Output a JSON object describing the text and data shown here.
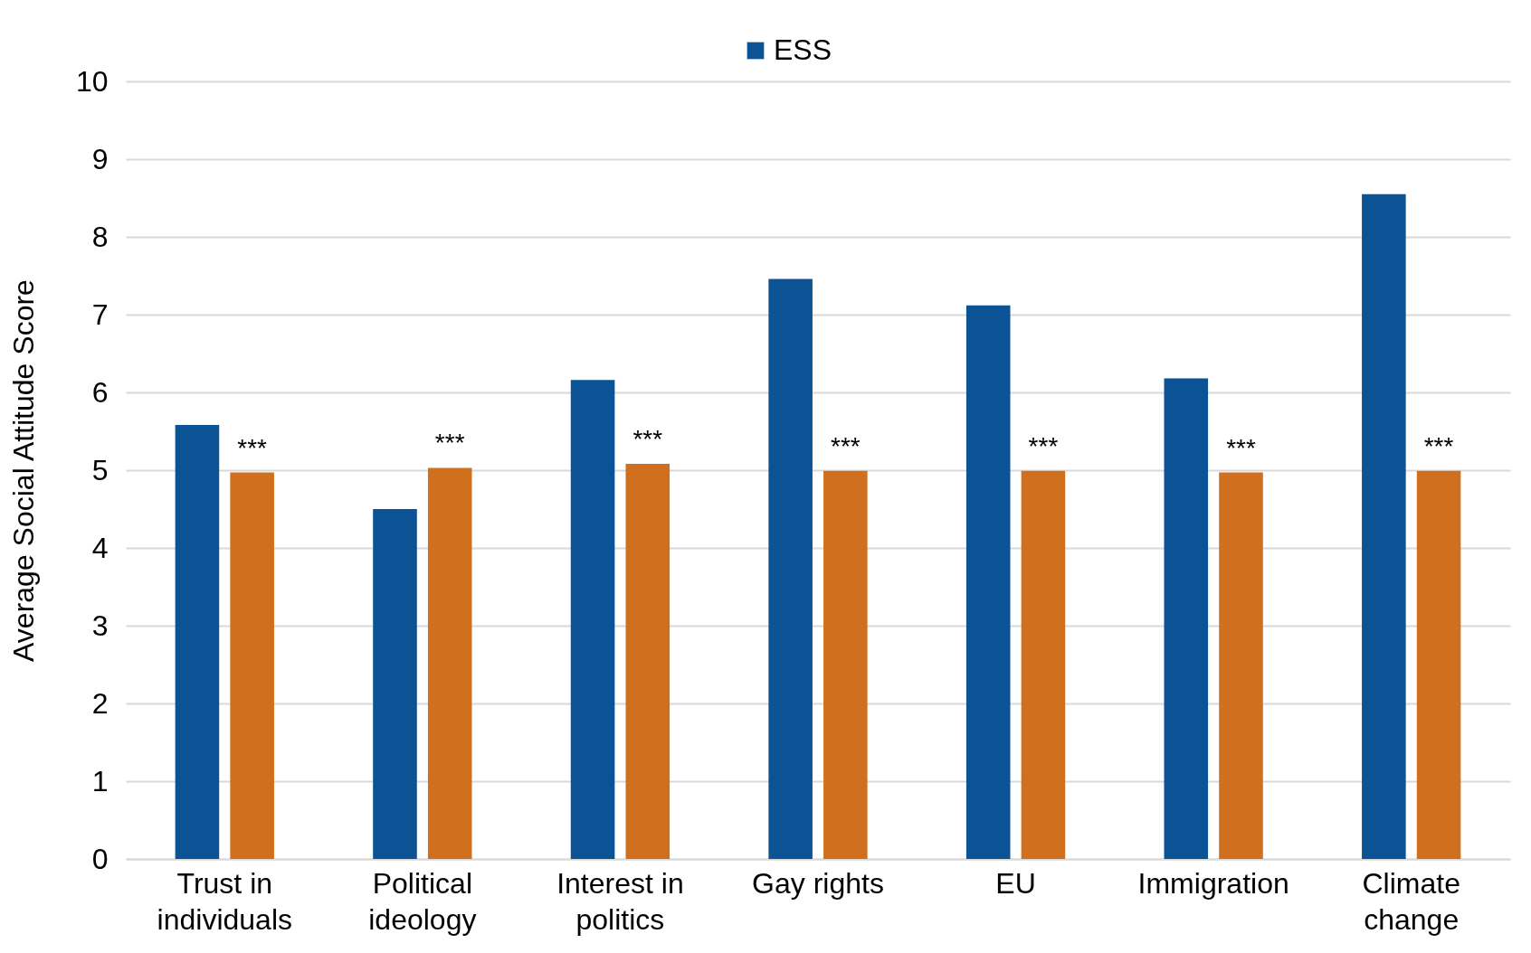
{
  "chart_data": {
    "type": "bar",
    "ylabel": "Average Social Attitude Score",
    "categories": [
      "Trust in individuals",
      "Political ideology",
      "Interest in politics",
      "Gay rights",
      "EU",
      "Immigration",
      "Climate change"
    ],
    "series": [
      {
        "name": "ESS",
        "color": "#0b5394",
        "values": [
          5.58,
          4.5,
          6.16,
          7.46,
          7.12,
          6.18,
          8.55
        ]
      },
      {
        "color": "#d0701e",
        "values": [
          4.97,
          5.03,
          5.08,
          4.99,
          4.99,
          4.97,
          4.99
        ]
      }
    ],
    "ylim": [
      0,
      10
    ],
    "yticks": [
      0,
      1,
      2,
      3,
      4,
      5,
      6,
      7,
      8,
      9,
      10
    ],
    "grid": "y",
    "legend": "top",
    "annotations": [
      "***",
      "***",
      "***",
      "***",
      "***",
      "***",
      "***"
    ]
  }
}
